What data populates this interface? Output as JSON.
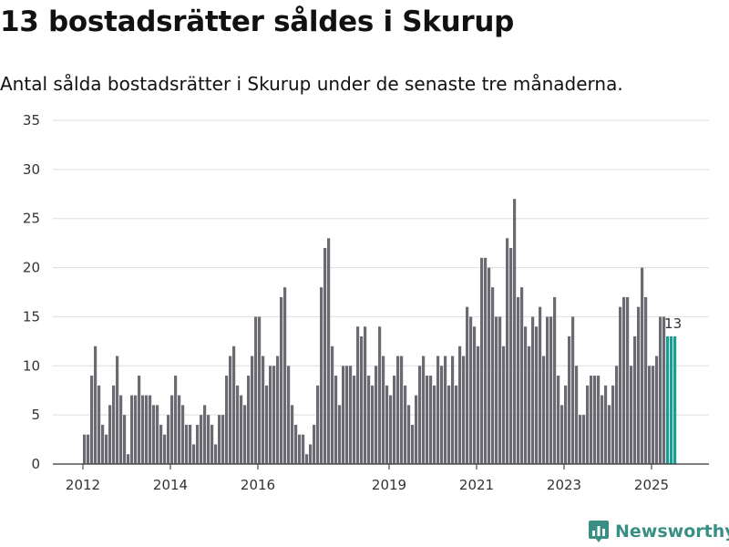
{
  "header": {
    "title": "13 bostadsrätter såldes i Skurup",
    "subtitle": "Antal sålda bostadsrätter i Skurup under de senaste tre månaderna."
  },
  "brand": {
    "name": "Newsworthy",
    "icon": "bar-chart-logo-icon"
  },
  "colors": {
    "bar": "#6b6a72",
    "highlight": "#1a9e93",
    "grid": "#dedede",
    "axis": "#333333"
  },
  "chart_data": {
    "type": "bar",
    "title": "13 bostadsrätter såldes i Skurup",
    "subtitle": "Antal sålda bostadsrätter i Skurup under de senaste tre månaderna.",
    "xlabel": "",
    "ylabel": "",
    "ylim": [
      0,
      35
    ],
    "yticks": [
      0,
      5,
      10,
      15,
      20,
      25,
      30,
      35
    ],
    "grid": true,
    "legend": "none",
    "x_start": "2012-01",
    "x_period": "month",
    "xtick_labels": [
      "2012",
      "2014",
      "2016",
      "2019",
      "2021",
      "2023",
      "2025"
    ],
    "xtick_positions": [
      "2012-01",
      "2014-01",
      "2016-01",
      "2019-01",
      "2021-01",
      "2023-01",
      "2025-01"
    ],
    "values": [
      3,
      3,
      9,
      12,
      8,
      4,
      3,
      6,
      8,
      11,
      7,
      5,
      1,
      7,
      7,
      9,
      7,
      7,
      7,
      6,
      6,
      4,
      3,
      5,
      7,
      9,
      7,
      6,
      4,
      4,
      2,
      4,
      5,
      6,
      5,
      4,
      2,
      5,
      5,
      9,
      11,
      12,
      8,
      7,
      6,
      9,
      11,
      15,
      15,
      11,
      8,
      10,
      10,
      11,
      17,
      18,
      10,
      6,
      4,
      3,
      3,
      1,
      2,
      4,
      8,
      18,
      22,
      23,
      12,
      9,
      6,
      10,
      10,
      10,
      9,
      14,
      13,
      14,
      9,
      8,
      10,
      14,
      11,
      8,
      7,
      9,
      11,
      11,
      8,
      6,
      4,
      7,
      10,
      11,
      9,
      9,
      8,
      11,
      10,
      11,
      8,
      11,
      8,
      12,
      11,
      16,
      15,
      14,
      12,
      21,
      21,
      20,
      18,
      15,
      15,
      12,
      23,
      22,
      27,
      17,
      18,
      14,
      12,
      15,
      14,
      16,
      11,
      15,
      15,
      17,
      9,
      6,
      8,
      13,
      15,
      10,
      5,
      5,
      8,
      9,
      9,
      9,
      7,
      8,
      6,
      8,
      10,
      16,
      17,
      17,
      10,
      13,
      16,
      20,
      17,
      10,
      10,
      11,
      15,
      15,
      13,
      13,
      13
    ],
    "highlight": {
      "count": 3,
      "label": "13"
    }
  }
}
